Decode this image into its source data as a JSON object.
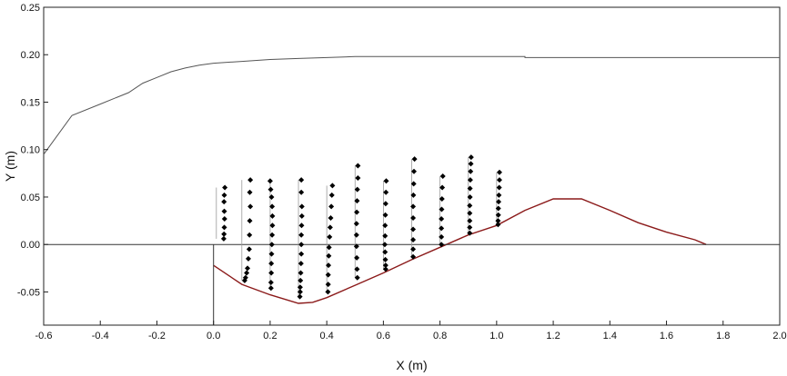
{
  "chart_data": {
    "type": "line",
    "title": "",
    "xlabel": "X (m)",
    "ylabel": "Y (m)",
    "xlim": [
      -0.6,
      2.0
    ],
    "ylim": [
      -0.085,
      0.25
    ],
    "x_ticks": [
      "-0.6",
      "-0.4",
      "-0.2",
      "0.0",
      "0.2",
      "0.4",
      "0.6",
      "0.8",
      "1.0",
      "1.2",
      "1.4",
      "1.6",
      "1.8",
      "2.0"
    ],
    "y_ticks": [
      "0.25",
      "0.20",
      "0.15",
      "0.10",
      "0.05",
      "0.00",
      "-0.05"
    ],
    "grid": false,
    "legend": "none",
    "series": [
      {
        "kind": "water_surface",
        "color": "#555555",
        "x": [
          -0.6,
          -0.5,
          -0.4,
          -0.3,
          -0.25,
          -0.2,
          -0.15,
          -0.1,
          -0.05,
          0.0,
          0.1,
          0.2,
          0.3,
          0.4,
          0.5,
          0.8,
          1.1,
          1.1,
          1.5,
          2.0
        ],
        "y": [
          0.095,
          0.136,
          0.148,
          0.16,
          0.17,
          0.176,
          0.182,
          0.186,
          0.189,
          0.191,
          0.193,
          0.195,
          0.196,
          0.197,
          0.198,
          0.198,
          0.198,
          0.197,
          0.197,
          0.197
        ]
      },
      {
        "kind": "bed_profile",
        "color": "#8b1a1a",
        "x": [
          0.0,
          0.1,
          0.2,
          0.3,
          0.35,
          0.4,
          0.5,
          0.6,
          0.7,
          0.8,
          0.9,
          1.0,
          1.1,
          1.2,
          1.3,
          1.4,
          1.5,
          1.6,
          1.7,
          1.74
        ],
        "y": [
          -0.022,
          -0.042,
          -0.053,
          -0.062,
          -0.061,
          -0.056,
          -0.043,
          -0.03,
          -0.016,
          -0.003,
          0.01,
          0.02,
          0.036,
          0.048,
          0.048,
          0.036,
          0.023,
          0.013,
          0.005,
          0.0
        ]
      },
      {
        "kind": "reference_line",
        "color": "#333333",
        "x": [
          -0.6,
          2.0
        ],
        "y": [
          0.0,
          0.0
        ]
      },
      {
        "kind": "apron_edge",
        "color": "#333333",
        "x": [
          0.0,
          0.0
        ],
        "y": [
          0.0,
          -0.085
        ]
      }
    ],
    "velocity_profiles": [
      {
        "x0": 0.01,
        "top": 0.06,
        "points": [
          [
            0.04,
            0.06
          ],
          [
            0.038,
            0.052
          ],
          [
            0.037,
            0.045
          ],
          [
            0.038,
            0.035
          ],
          [
            0.039,
            0.027
          ],
          [
            0.038,
            0.018
          ],
          [
            0.037,
            0.011
          ],
          [
            0.036,
            0.006
          ]
        ]
      },
      {
        "x0": 0.1,
        "top": 0.068,
        "points": [
          [
            0.13,
            0.068
          ],
          [
            0.128,
            0.055
          ],
          [
            0.13,
            0.04
          ],
          [
            0.128,
            0.025
          ],
          [
            0.127,
            0.01
          ],
          [
            0.126,
            -0.005
          ],
          [
            0.123,
            -0.015
          ],
          [
            0.12,
            -0.025
          ],
          [
            0.117,
            -0.03
          ],
          [
            0.113,
            -0.035
          ],
          [
            0.11,
            -0.038
          ]
        ]
      },
      {
        "x0": 0.2,
        "top": 0.067,
        "points": [
          [
            0.2,
            0.067
          ],
          [
            0.202,
            0.058
          ],
          [
            0.205,
            0.05
          ],
          [
            0.207,
            0.04
          ],
          [
            0.208,
            0.03
          ],
          [
            0.208,
            0.02
          ],
          [
            0.207,
            0.01
          ],
          [
            0.206,
            0.0
          ],
          [
            0.205,
            -0.01
          ],
          [
            0.204,
            -0.02
          ],
          [
            0.204,
            -0.03
          ],
          [
            0.203,
            -0.04
          ],
          [
            0.203,
            -0.046
          ]
        ]
      },
      {
        "x0": 0.3,
        "top": 0.068,
        "points": [
          [
            0.31,
            0.068
          ],
          [
            0.31,
            0.055
          ],
          [
            0.312,
            0.04
          ],
          [
            0.312,
            0.03
          ],
          [
            0.311,
            0.02
          ],
          [
            0.31,
            0.01
          ],
          [
            0.31,
            0.0
          ],
          [
            0.31,
            -0.01
          ],
          [
            0.309,
            -0.02
          ],
          [
            0.308,
            -0.03
          ],
          [
            0.307,
            -0.038
          ],
          [
            0.306,
            -0.045
          ],
          [
            0.306,
            -0.05
          ],
          [
            0.305,
            -0.055
          ]
        ]
      },
      {
        "x0": 0.4,
        "top": 0.062,
        "points": [
          [
            0.42,
            0.062
          ],
          [
            0.418,
            0.052
          ],
          [
            0.416,
            0.04
          ],
          [
            0.414,
            0.028
          ],
          [
            0.412,
            0.018
          ],
          [
            0.41,
            0.008
          ],
          [
            0.408,
            -0.003
          ],
          [
            0.407,
            -0.012
          ],
          [
            0.406,
            -0.022
          ],
          [
            0.405,
            -0.032
          ],
          [
            0.405,
            -0.042
          ],
          [
            0.404,
            -0.05
          ]
        ]
      },
      {
        "x0": 0.5,
        "top": 0.083,
        "points": [
          [
            0.51,
            0.083
          ],
          [
            0.51,
            0.07
          ],
          [
            0.508,
            0.058
          ],
          [
            0.507,
            0.046
          ],
          [
            0.506,
            0.034
          ],
          [
            0.505,
            0.022
          ],
          [
            0.505,
            0.01
          ],
          [
            0.505,
            -0.002
          ],
          [
            0.506,
            -0.014
          ],
          [
            0.507,
            -0.026
          ],
          [
            0.508,
            -0.035
          ]
        ]
      },
      {
        "x0": 0.6,
        "top": 0.067,
        "points": [
          [
            0.61,
            0.067
          ],
          [
            0.609,
            0.055
          ],
          [
            0.608,
            0.043
          ],
          [
            0.607,
            0.031
          ],
          [
            0.606,
            0.02
          ],
          [
            0.606,
            0.009
          ],
          [
            0.605,
            0.0
          ],
          [
            0.606,
            -0.008
          ],
          [
            0.607,
            -0.016
          ],
          [
            0.608,
            -0.022
          ],
          [
            0.608,
            -0.026
          ]
        ]
      },
      {
        "x0": 0.7,
        "top": 0.09,
        "points": [
          [
            0.71,
            0.09
          ],
          [
            0.708,
            0.077
          ],
          [
            0.707,
            0.064
          ],
          [
            0.706,
            0.052
          ],
          [
            0.705,
            0.04
          ],
          [
            0.705,
            0.028
          ],
          [
            0.705,
            0.016
          ],
          [
            0.705,
            0.005
          ],
          [
            0.705,
            -0.005
          ],
          [
            0.705,
            -0.013
          ]
        ]
      },
      {
        "x0": 0.8,
        "top": 0.072,
        "points": [
          [
            0.81,
            0.072
          ],
          [
            0.808,
            0.06
          ],
          [
            0.807,
            0.048
          ],
          [
            0.806,
            0.037
          ],
          [
            0.805,
            0.027
          ],
          [
            0.805,
            0.017
          ],
          [
            0.805,
            0.008
          ],
          [
            0.805,
            0.0
          ]
        ]
      },
      {
        "x0": 0.9,
        "top": 0.092,
        "points": [
          [
            0.91,
            0.092
          ],
          [
            0.909,
            0.085
          ],
          [
            0.908,
            0.077
          ],
          [
            0.907,
            0.068
          ],
          [
            0.906,
            0.059
          ],
          [
            0.906,
            0.05
          ],
          [
            0.905,
            0.041
          ],
          [
            0.905,
            0.033
          ],
          [
            0.905,
            0.025
          ],
          [
            0.905,
            0.018
          ],
          [
            0.905,
            0.012
          ]
        ]
      },
      {
        "x0": 1.0,
        "top": 0.076,
        "points": [
          [
            1.01,
            0.076
          ],
          [
            1.01,
            0.068
          ],
          [
            1.009,
            0.06
          ],
          [
            1.008,
            0.052
          ],
          [
            1.007,
            0.045
          ],
          [
            1.006,
            0.038
          ],
          [
            1.006,
            0.031
          ],
          [
            1.005,
            0.025
          ],
          [
            1.005,
            0.021
          ]
        ]
      }
    ]
  }
}
